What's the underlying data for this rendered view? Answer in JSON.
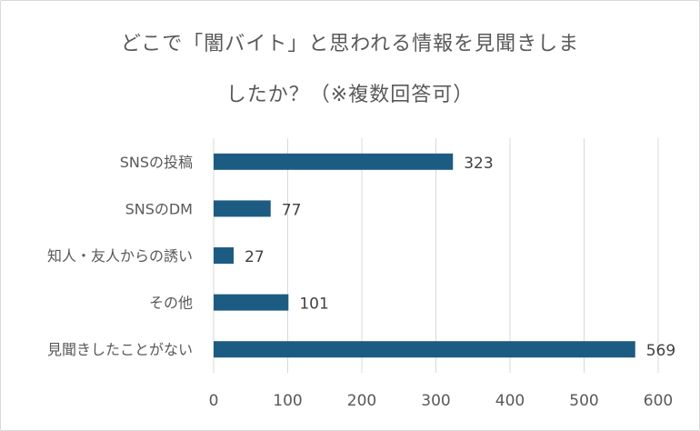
{
  "chart_data": {
    "type": "bar",
    "orientation": "horizontal",
    "title_lines": [
      "どこで「闇バイト」と思われる情報を見聞きしま",
      "したか？（※複数回答可）"
    ],
    "categories": [
      "SNSの投稿",
      "SNSのDM",
      "知人・友人からの誘い",
      "その他",
      "見聞きしたことがない"
    ],
    "values": [
      323,
      77,
      27,
      101,
      569
    ],
    "xlim": [
      0,
      600
    ],
    "xticks": [
      "0",
      "100",
      "200",
      "300",
      "400",
      "500",
      "600"
    ],
    "grid": "vertical",
    "legend": "none",
    "bar_color": "#1d5c82"
  }
}
